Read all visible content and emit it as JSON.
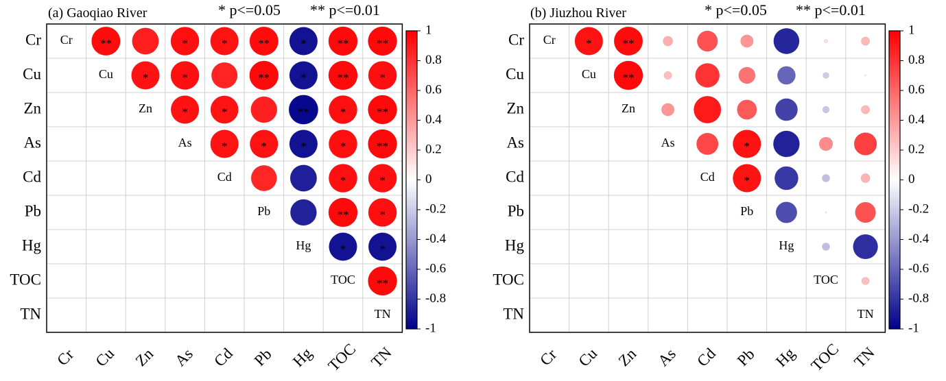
{
  "legend": {
    "sig_single": "* p<=0.05",
    "sig_double": "** p<=0.01"
  },
  "colorbar": {
    "ticks": [
      "1",
      "0.8",
      "0.6",
      "0.4",
      "0.2",
      "0",
      "-0.2",
      "-0.4",
      "-0.6",
      "-0.8",
      "-1"
    ],
    "range": [
      -1,
      1
    ],
    "color_pos": "#ff0000",
    "color_mid": "#ffffff",
    "color_neg": "#00008b"
  },
  "chart_data": [
    {
      "type": "heatmap",
      "title": "(a) Gaoqiao River",
      "variables": [
        "Cr",
        "Cu",
        "Zn",
        "As",
        "Cd",
        "Pb",
        "Hg",
        "TOC",
        "TN"
      ],
      "cells": [
        {
          "row": "Cr",
          "col": "Cu",
          "value": 0.95,
          "sig": "**"
        },
        {
          "row": "Cr",
          "col": "Zn",
          "value": 0.88,
          "sig": ""
        },
        {
          "row": "Cr",
          "col": "As",
          "value": 0.94,
          "sig": "*"
        },
        {
          "row": "Cr",
          "col": "Cd",
          "value": 0.93,
          "sig": "*"
        },
        {
          "row": "Cr",
          "col": "Pb",
          "value": 0.95,
          "sig": "**"
        },
        {
          "row": "Cr",
          "col": "Hg",
          "value": -0.93,
          "sig": "*"
        },
        {
          "row": "Cr",
          "col": "TOC",
          "value": 0.96,
          "sig": "**"
        },
        {
          "row": "Cr",
          "col": "TN",
          "value": 0.96,
          "sig": "**"
        },
        {
          "row": "Cu",
          "col": "Zn",
          "value": 0.93,
          "sig": "*"
        },
        {
          "row": "Cu",
          "col": "As",
          "value": 0.94,
          "sig": "*"
        },
        {
          "row": "Cu",
          "col": "Cd",
          "value": 0.86,
          "sig": ""
        },
        {
          "row": "Cu",
          "col": "Pb",
          "value": 0.96,
          "sig": "**"
        },
        {
          "row": "Cu",
          "col": "Hg",
          "value": -0.93,
          "sig": "*"
        },
        {
          "row": "Cu",
          "col": "TOC",
          "value": 0.96,
          "sig": "**"
        },
        {
          "row": "Cu",
          "col": "TN",
          "value": 0.94,
          "sig": "*"
        },
        {
          "row": "Zn",
          "col": "As",
          "value": 0.93,
          "sig": "*"
        },
        {
          "row": "Zn",
          "col": "Cd",
          "value": 0.92,
          "sig": "*"
        },
        {
          "row": "Zn",
          "col": "Pb",
          "value": 0.87,
          "sig": ""
        },
        {
          "row": "Zn",
          "col": "Hg",
          "value": -0.97,
          "sig": "**"
        },
        {
          "row": "Zn",
          "col": "TOC",
          "value": 0.94,
          "sig": "*"
        },
        {
          "row": "Zn",
          "col": "TN",
          "value": 0.96,
          "sig": "**"
        },
        {
          "row": "As",
          "col": "Cd",
          "value": 0.93,
          "sig": "*"
        },
        {
          "row": "As",
          "col": "Pb",
          "value": 0.93,
          "sig": "*"
        },
        {
          "row": "As",
          "col": "Hg",
          "value": -0.93,
          "sig": "*"
        },
        {
          "row": "As",
          "col": "TOC",
          "value": 0.94,
          "sig": "*"
        },
        {
          "row": "As",
          "col": "TN",
          "value": 0.96,
          "sig": "**"
        },
        {
          "row": "Cd",
          "col": "Pb",
          "value": 0.85,
          "sig": ""
        },
        {
          "row": "Cd",
          "col": "Hg",
          "value": -0.88,
          "sig": ""
        },
        {
          "row": "Cd",
          "col": "TOC",
          "value": 0.94,
          "sig": "*"
        },
        {
          "row": "Cd",
          "col": "TN",
          "value": 0.94,
          "sig": "*"
        },
        {
          "row": "Pb",
          "col": "Hg",
          "value": -0.87,
          "sig": ""
        },
        {
          "row": "Pb",
          "col": "TOC",
          "value": 0.96,
          "sig": "**"
        },
        {
          "row": "Pb",
          "col": "TN",
          "value": 0.94,
          "sig": "*"
        },
        {
          "row": "Hg",
          "col": "TOC",
          "value": -0.93,
          "sig": "*"
        },
        {
          "row": "Hg",
          "col": "TN",
          "value": -0.93,
          "sig": "*"
        },
        {
          "row": "TOC",
          "col": "TN",
          "value": 0.96,
          "sig": "**"
        }
      ]
    },
    {
      "type": "heatmap",
      "title": "(b) Jiuzhou River",
      "variables": [
        "Cr",
        "Cu",
        "Zn",
        "As",
        "Cd",
        "Pb",
        "Hg",
        "TOC",
        "TN"
      ],
      "cells": [
        {
          "row": "Cr",
          "col": "Cu",
          "value": 0.93,
          "sig": "*"
        },
        {
          "row": "Cr",
          "col": "Zn",
          "value": 0.95,
          "sig": "**"
        },
        {
          "row": "Cr",
          "col": "As",
          "value": 0.32,
          "sig": ""
        },
        {
          "row": "Cr",
          "col": "Cd",
          "value": 0.68,
          "sig": ""
        },
        {
          "row": "Cr",
          "col": "Pb",
          "value": 0.42,
          "sig": ""
        },
        {
          "row": "Cr",
          "col": "Hg",
          "value": -0.85,
          "sig": ""
        },
        {
          "row": "Cr",
          "col": "TOC",
          "value": 0.12,
          "sig": ""
        },
        {
          "row": "Cr",
          "col": "TN",
          "value": 0.28,
          "sig": ""
        },
        {
          "row": "Cu",
          "col": "Zn",
          "value": 0.96,
          "sig": "**"
        },
        {
          "row": "Cu",
          "col": "As",
          "value": 0.26,
          "sig": ""
        },
        {
          "row": "Cu",
          "col": "Cd",
          "value": 0.8,
          "sig": ""
        },
        {
          "row": "Cu",
          "col": "Pb",
          "value": 0.55,
          "sig": ""
        },
        {
          "row": "Cu",
          "col": "Hg",
          "value": -0.6,
          "sig": ""
        },
        {
          "row": "Cu",
          "col": "TOC",
          "value": -0.2,
          "sig": ""
        },
        {
          "row": "Cu",
          "col": "TN",
          "value": 0.05,
          "sig": ""
        },
        {
          "row": "Zn",
          "col": "As",
          "value": 0.42,
          "sig": ""
        },
        {
          "row": "Zn",
          "col": "Cd",
          "value": 0.9,
          "sig": ""
        },
        {
          "row": "Zn",
          "col": "Pb",
          "value": 0.65,
          "sig": ""
        },
        {
          "row": "Zn",
          "col": "Hg",
          "value": -0.74,
          "sig": ""
        },
        {
          "row": "Zn",
          "col": "TOC",
          "value": -0.22,
          "sig": ""
        },
        {
          "row": "Zn",
          "col": "TN",
          "value": 0.28,
          "sig": ""
        },
        {
          "row": "As",
          "col": "Cd",
          "value": 0.72,
          "sig": ""
        },
        {
          "row": "As",
          "col": "Pb",
          "value": 0.93,
          "sig": "*"
        },
        {
          "row": "As",
          "col": "Hg",
          "value": -0.87,
          "sig": ""
        },
        {
          "row": "As",
          "col": "TOC",
          "value": 0.45,
          "sig": ""
        },
        {
          "row": "As",
          "col": "TN",
          "value": 0.75,
          "sig": ""
        },
        {
          "row": "Cd",
          "col": "Pb",
          "value": 0.93,
          "sig": "*"
        },
        {
          "row": "Cd",
          "col": "Hg",
          "value": -0.78,
          "sig": ""
        },
        {
          "row": "Cd",
          "col": "TOC",
          "value": -0.25,
          "sig": ""
        },
        {
          "row": "Cd",
          "col": "TN",
          "value": 0.3,
          "sig": ""
        },
        {
          "row": "Pb",
          "col": "Hg",
          "value": -0.7,
          "sig": ""
        },
        {
          "row": "Pb",
          "col": "TOC",
          "value": -0.05,
          "sig": ""
        },
        {
          "row": "Pb",
          "col": "TN",
          "value": 0.68,
          "sig": ""
        },
        {
          "row": "Hg",
          "col": "TOC",
          "value": -0.25,
          "sig": ""
        },
        {
          "row": "Hg",
          "col": "TN",
          "value": -0.82,
          "sig": ""
        },
        {
          "row": "TOC",
          "col": "TN",
          "value": 0.25,
          "sig": ""
        }
      ]
    }
  ]
}
